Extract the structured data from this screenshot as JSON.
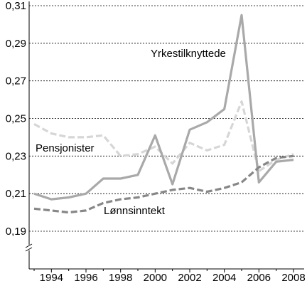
{
  "chart_data": {
    "type": "line",
    "x": [
      1993,
      1994,
      1995,
      1996,
      1997,
      1998,
      1999,
      2000,
      2001,
      2002,
      2003,
      2004,
      2005,
      2006,
      2007,
      2008
    ],
    "series": [
      {
        "name": "Yrkestilknyttede",
        "color": "#a9a9a9",
        "dash": "solid",
        "values": [
          0.21,
          0.207,
          0.208,
          0.21,
          0.218,
          0.218,
          0.22,
          0.241,
          0.215,
          0.244,
          0.248,
          0.255,
          0.305,
          0.216,
          0.227,
          0.228
        ]
      },
      {
        "name": "Pensjonister",
        "color": "#d6d6d6",
        "dash": "dashed",
        "values": [
          0.247,
          0.242,
          0.24,
          0.24,
          0.241,
          0.23,
          0.231,
          0.235,
          0.226,
          0.237,
          0.233,
          0.236,
          0.259,
          0.222,
          0.228,
          0.231
        ]
      },
      {
        "name": "Lønnsinntekt",
        "color": "#878787",
        "dash": "dashed",
        "values": [
          0.202,
          0.201,
          0.2,
          0.201,
          0.205,
          0.207,
          0.208,
          0.21,
          0.212,
          0.213,
          0.211,
          0.213,
          0.216,
          0.224,
          0.229,
          0.23
        ]
      }
    ],
    "y_ticks": [
      "0,31",
      "0,29",
      "0,27",
      "0,25",
      "0,23",
      "0,21",
      "0,19"
    ],
    "x_ticks": [
      "1994",
      "1996",
      "1998",
      "2000",
      "2002",
      "2004",
      "2006",
      "2008"
    ],
    "ylim": [
      0.19,
      0.31
    ],
    "xlim": [
      1993,
      2008
    ],
    "grid": "horizontal dashed",
    "axis_break": "y",
    "title": "",
    "xlabel": "",
    "ylabel": ""
  }
}
